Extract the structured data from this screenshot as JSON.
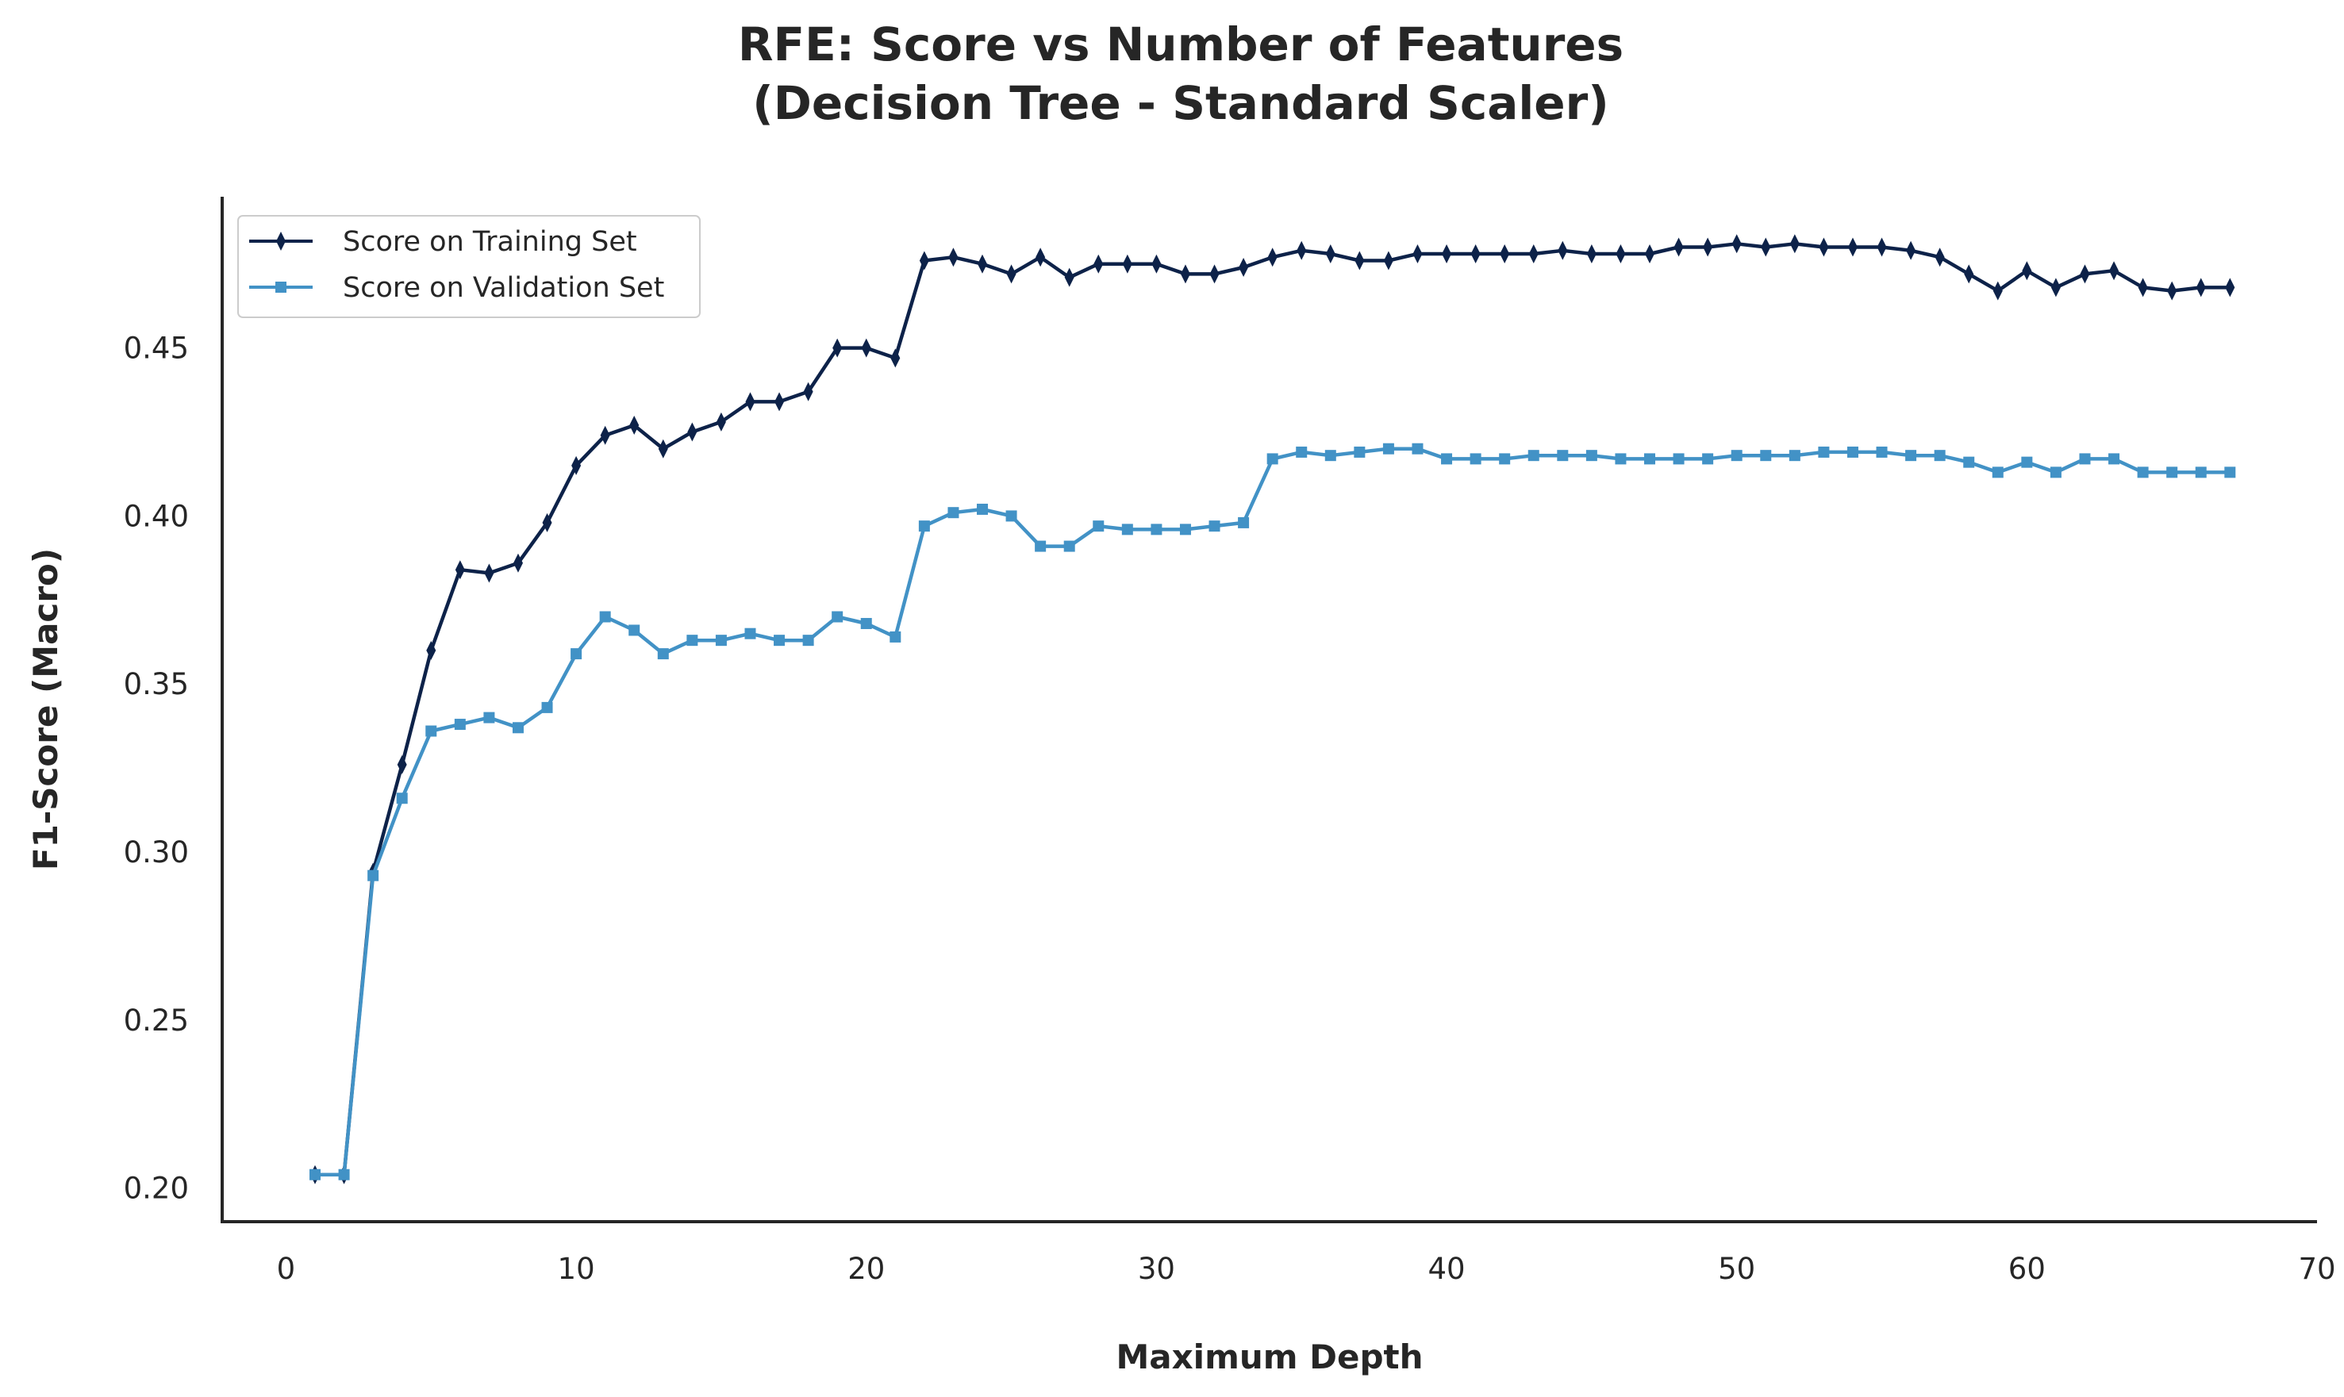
{
  "chart_data": {
    "type": "line",
    "title": "RFE: Score vs Number of Features",
    "subtitle": "(Decision Tree - Standard Scaler)",
    "xlabel": "Maximum Depth",
    "ylabel": "F1-Score (Macro)",
    "xlim": [
      -2.2,
      70
    ],
    "ylim": [
      0.19,
      0.495
    ],
    "xticks": [
      0,
      10,
      20,
      30,
      40,
      50,
      60,
      70
    ],
    "yticks": [
      0.2,
      0.25,
      0.3,
      0.35,
      0.4,
      0.45
    ],
    "yticks_labels": [
      "0.20",
      "0.25",
      "0.30",
      "0.35",
      "0.40",
      "0.45"
    ],
    "grid": false,
    "legend_position": "top-left",
    "x": [
      1,
      2,
      3,
      4,
      5,
      6,
      7,
      8,
      9,
      10,
      11,
      12,
      13,
      14,
      15,
      16,
      17,
      18,
      19,
      20,
      21,
      22,
      23,
      24,
      25,
      26,
      27,
      28,
      29,
      30,
      31,
      32,
      33,
      34,
      35,
      36,
      37,
      38,
      39,
      40,
      41,
      42,
      43,
      44,
      45,
      46,
      47,
      48,
      49,
      50,
      51,
      52,
      53,
      54,
      55,
      56,
      57,
      58,
      59,
      60,
      61,
      62,
      63,
      64,
      65,
      66,
      67
    ],
    "series": [
      {
        "name": "Score on Training Set",
        "color": "#0d2249",
        "marker": "thin-diamond",
        "values": [
          0.204,
          0.204,
          0.294,
          0.326,
          0.36,
          0.384,
          0.383,
          0.386,
          0.398,
          0.415,
          0.424,
          0.427,
          0.42,
          0.425,
          0.428,
          0.434,
          0.434,
          0.437,
          0.45,
          0.45,
          0.447,
          0.476,
          0.477,
          0.475,
          0.472,
          0.477,
          0.471,
          0.475,
          0.475,
          0.475,
          0.472,
          0.472,
          0.474,
          0.477,
          0.479,
          0.478,
          0.476,
          0.476,
          0.478,
          0.478,
          0.478,
          0.478,
          0.478,
          0.479,
          0.478,
          0.478,
          0.478,
          0.48,
          0.48,
          0.481,
          0.48,
          0.481,
          0.48,
          0.48,
          0.48,
          0.479,
          0.477,
          0.472,
          0.467,
          0.473,
          0.468,
          0.472,
          0.473,
          0.468,
          0.467,
          0.468,
          0.468
        ]
      },
      {
        "name": "Score on Validation Set",
        "color": "#4292c6",
        "marker": "square",
        "values": [
          0.204,
          0.204,
          0.293,
          0.316,
          0.336,
          0.338,
          0.34,
          0.337,
          0.343,
          0.359,
          0.37,
          0.366,
          0.359,
          0.363,
          0.363,
          0.365,
          0.363,
          0.363,
          0.37,
          0.368,
          0.364,
          0.397,
          0.401,
          0.402,
          0.4,
          0.391,
          0.391,
          0.397,
          0.396,
          0.396,
          0.396,
          0.397,
          0.398,
          0.417,
          0.419,
          0.418,
          0.419,
          0.42,
          0.42,
          0.417,
          0.417,
          0.417,
          0.418,
          0.418,
          0.418,
          0.417,
          0.417,
          0.417,
          0.417,
          0.418,
          0.418,
          0.418,
          0.419,
          0.419,
          0.419,
          0.418,
          0.418,
          0.416,
          0.413,
          0.416,
          0.413,
          0.417,
          0.417,
          0.413,
          0.413,
          0.413,
          0.413
        ]
      }
    ]
  }
}
